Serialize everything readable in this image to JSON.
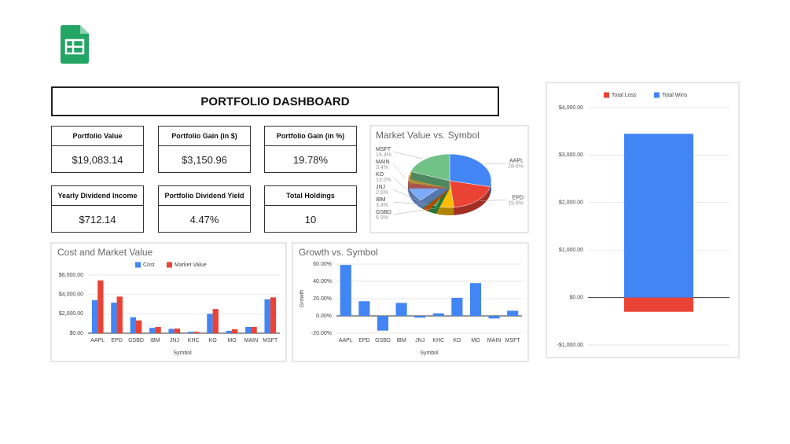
{
  "header": {
    "title": "PORTFOLIO DASHBOARD"
  },
  "cards": [
    {
      "label": "Portfolio Value",
      "value": "$19,083.14"
    },
    {
      "label": "Portfolio Gain (in $)",
      "value": "$3,150.96"
    },
    {
      "label": "Portfolio Gain (in %)",
      "value": "19.78%"
    },
    {
      "label": "Yearly Dividend Income",
      "value": "$712.14"
    },
    {
      "label": "Portfolio Dividend Yield",
      "value": "4.47%"
    },
    {
      "label": "Total Holdings",
      "value": "10"
    }
  ],
  "chart_data": [
    {
      "type": "pie",
      "title": "Market Value vs. Symbol",
      "categories": [
        "AAPL",
        "EPD",
        "GSBD",
        "IBM",
        "JNJ",
        null,
        "KO",
        "MAIN",
        null,
        "MSFT"
      ],
      "values": [
        28.6,
        19.8,
        6.9,
        3.4,
        2.6,
        0.8,
        13.0,
        3.4,
        2.1,
        19.4
      ],
      "value_labels": [
        "28.6%",
        "19.8%",
        "6.9%",
        "3.4%",
        "2.6%",
        null,
        "13.0%",
        "3.4%",
        null,
        "19.4%"
      ],
      "colors": [
        "#4285f4",
        "#ea4335",
        "#fbbc04",
        "#34a853",
        "#ff6d01",
        "#46bdc6",
        "#7baaf7",
        "#f07b72",
        "#fcd04f",
        "#71c287"
      ]
    },
    {
      "type": "bar",
      "title": "Cost and Market Value",
      "x_label": "Symbol",
      "categories": [
        "AAPL",
        "EPD",
        "GSBD",
        "IBM",
        "JNJ",
        "KHC",
        "KO",
        "MO",
        "MAIN",
        "MSFT"
      ],
      "series": [
        {
          "name": "Cost",
          "color": "#4285f4",
          "values": [
            3400,
            3150,
            1650,
            550,
            450,
            150,
            2000,
            250,
            650,
            3500
          ]
        },
        {
          "name": "Market Value",
          "color": "#ea4335",
          "values": [
            5450,
            3780,
            1320,
            650,
            480,
            150,
            2500,
            400,
            650,
            3700
          ]
        }
      ],
      "ylim": [
        0,
        6000
      ],
      "yticks": [
        {
          "value": 0,
          "label": "$0.00"
        },
        {
          "value": 2000,
          "label": "$2,000.00"
        },
        {
          "value": 4000,
          "label": "$4,000.00"
        },
        {
          "value": 6000,
          "label": "$6,000.00"
        }
      ],
      "grid": true,
      "legend": "top"
    },
    {
      "type": "bar",
      "title": "Growth vs. Symbol",
      "x_label": "Symbol",
      "y_label": "Growth",
      "categories": [
        "AAPL",
        "EPD",
        "GSBD",
        "IBM",
        "JNJ",
        "KHC",
        "KO",
        "MO",
        "MAIN",
        "MSFT"
      ],
      "values": [
        59,
        17,
        -17,
        15,
        -2,
        3,
        21,
        38,
        -3,
        6
      ],
      "color": "#4285f4",
      "ylim": [
        -20,
        60
      ],
      "yticks": [
        {
          "value": -20,
          "label": "-20.00%"
        },
        {
          "value": 0,
          "label": "0.00%"
        },
        {
          "value": 20,
          "label": "20.00%"
        },
        {
          "value": 40,
          "label": "40.00%"
        },
        {
          "value": 60,
          "label": "60.00%"
        }
      ],
      "grid": true
    },
    {
      "type": "bar",
      "stacked": true,
      "categories": [
        null
      ],
      "series": [
        {
          "name": "Total Loss",
          "color": "#ea4335",
          "values": [
            -300
          ]
        },
        {
          "name": "Total Wins",
          "color": "#4285f4",
          "values": [
            3450
          ]
        }
      ],
      "ylim": [
        -1000,
        4000
      ],
      "yticks": [
        {
          "value": -1000,
          "label": "-$1,000.00"
        },
        {
          "value": 0,
          "label": "$0.00"
        },
        {
          "value": 1000,
          "label": "$1,000.00"
        },
        {
          "value": 2000,
          "label": "$2,000.00"
        },
        {
          "value": 3000,
          "label": "$3,000.00"
        },
        {
          "value": 4000,
          "label": "$4,000.00"
        }
      ],
      "grid": true,
      "legend": "top"
    }
  ]
}
